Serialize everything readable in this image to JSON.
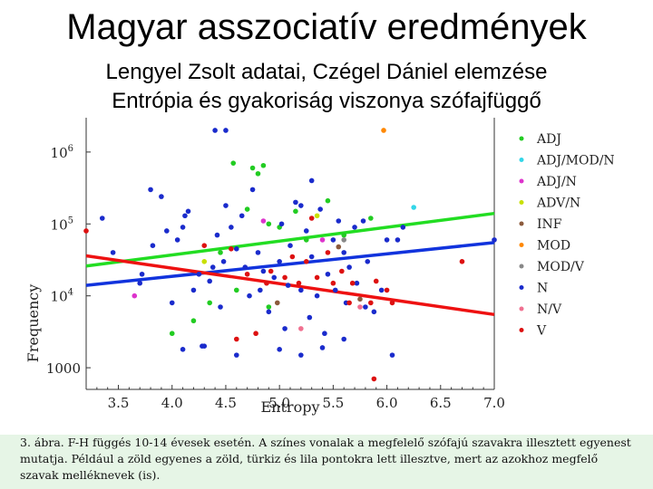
{
  "slide": {
    "title": "Magyar asszociatív eredmények",
    "subtitle1": "Lengyel Zsolt adatai, Czégel Dániel elemzése",
    "subtitle2": "Entrópia és gyakoriság viszonya  szófajfüggő"
  },
  "caption": "3. ábra. F-H függés 10-14 évesek esetén.  A színes vonalak a megfelelő szófajú szavakra illesztett egyenest mutatja. Például a zöld egyenes a zöld, türkiz és lila pontokra lett illesztve, mert az azokhoz megfelő szavak melléknevek (is).",
  "chart_data": {
    "type": "scatter",
    "xlabel": "Entropy",
    "ylabel": "Frequency",
    "xlim": [
      3.2,
      7.0
    ],
    "ylim": [
      500,
      3000000
    ],
    "yscale": "log",
    "x_ticks": [
      "3.5",
      "4.0",
      "4.5",
      "5.0",
      "5.5",
      "6.0",
      "6.5",
      "7.0"
    ],
    "x_tick_values": [
      3.5,
      4.0,
      4.5,
      5.0,
      5.5,
      6.0,
      6.5,
      7.0
    ],
    "y_ticks": [
      {
        "value": 1000000,
        "base": "10",
        "exp": "6"
      },
      {
        "value": 100000,
        "base": "10",
        "exp": "5"
      },
      {
        "value": 10000,
        "base": "10",
        "exp": "4"
      },
      {
        "value": 1000,
        "base": "1000",
        "exp": ""
      }
    ],
    "legend_position": "right",
    "series": [
      {
        "name": "ADJ",
        "color": "#22cc22",
        "points": [
          [
            4.57,
            700000
          ],
          [
            4.75,
            600000
          ],
          [
            4.85,
            650000
          ],
          [
            4.9,
            100000
          ],
          [
            5.15,
            150000
          ],
          [
            5.45,
            210000
          ],
          [
            4.7,
            160000
          ],
          [
            5.85,
            120000
          ],
          [
            5.25,
            60000
          ],
          [
            4.35,
            8000
          ],
          [
            4.6,
            12000
          ],
          [
            4.9,
            7000
          ],
          [
            4.2,
            4500
          ],
          [
            4.0,
            3000
          ],
          [
            4.45,
            40000
          ],
          [
            4.8,
            500000
          ],
          [
            5.0,
            90000
          ],
          [
            5.6,
            70000
          ]
        ]
      },
      {
        "name": "ADJ/MOD/N",
        "color": "#33d6e8",
        "points": [
          [
            6.25,
            170000
          ]
        ]
      },
      {
        "name": "ADJ/N",
        "color": "#dd33cc",
        "points": [
          [
            4.85,
            110000
          ],
          [
            3.65,
            10000
          ],
          [
            5.4,
            60000
          ]
        ]
      },
      {
        "name": "ADV/N",
        "color": "#c8e000",
        "points": [
          [
            4.3,
            30000
          ],
          [
            5.35,
            130000
          ]
        ]
      },
      {
        "name": "INF",
        "color": "#8b5a3c",
        "points": [
          [
            4.98,
            8000
          ],
          [
            5.55,
            48000
          ],
          [
            5.75,
            9000
          ]
        ]
      },
      {
        "name": "MOD",
        "color": "#ff8800",
        "points": [
          [
            5.97,
            2000000
          ]
        ]
      },
      {
        "name": "MOD/V",
        "color": "#888888",
        "points": [
          [
            5.6,
            60000
          ]
        ]
      },
      {
        "name": "N",
        "color": "#1a2bcc",
        "points": [
          [
            3.35,
            120000
          ],
          [
            3.45,
            40000
          ],
          [
            3.7,
            15000
          ],
          [
            3.72,
            20000
          ],
          [
            3.82,
            50000
          ],
          [
            3.95,
            80000
          ],
          [
            4.05,
            60000
          ],
          [
            4.12,
            130000
          ],
          [
            4.15,
            150000
          ],
          [
            4.2,
            12000
          ],
          [
            4.25,
            20000
          ],
          [
            4.28,
            2000
          ],
          [
            4.35,
            16000
          ],
          [
            4.38,
            25000
          ],
          [
            4.42,
            70000
          ],
          [
            4.48,
            30000
          ],
          [
            4.5,
            180000
          ],
          [
            4.55,
            90000
          ],
          [
            4.6,
            45000
          ],
          [
            4.65,
            130000
          ],
          [
            4.68,
            25000
          ],
          [
            4.72,
            10000
          ],
          [
            4.75,
            300000
          ],
          [
            4.8,
            40000
          ],
          [
            4.82,
            12000
          ],
          [
            4.85,
            22000
          ],
          [
            4.9,
            6000
          ],
          [
            4.95,
            18000
          ],
          [
            5.0,
            30000
          ],
          [
            5.02,
            100000
          ],
          [
            5.05,
            3500
          ],
          [
            5.08,
            14000
          ],
          [
            5.1,
            50000
          ],
          [
            5.15,
            200000
          ],
          [
            5.2,
            12000
          ],
          [
            5.25,
            80000
          ],
          [
            5.28,
            5000
          ],
          [
            5.3,
            35000
          ],
          [
            5.35,
            10000
          ],
          [
            5.38,
            160000
          ],
          [
            5.42,
            3000
          ],
          [
            5.45,
            20000
          ],
          [
            5.5,
            60000
          ],
          [
            5.52,
            12000
          ],
          [
            5.55,
            110000
          ],
          [
            5.6,
            40000
          ],
          [
            5.62,
            8000
          ],
          [
            5.65,
            25000
          ],
          [
            5.7,
            90000
          ],
          [
            5.72,
            15000
          ],
          [
            5.78,
            110000
          ],
          [
            5.82,
            30000
          ],
          [
            5.88,
            6000
          ],
          [
            5.95,
            12000
          ],
          [
            6.05,
            1500
          ],
          [
            6.1,
            60000
          ],
          [
            6.15,
            90000
          ],
          [
            4.45,
            7000
          ],
          [
            4.3,
            2000
          ],
          [
            4.1,
            1800
          ],
          [
            4.0,
            8000
          ],
          [
            4.6,
            1500
          ],
          [
            5.0,
            1800
          ],
          [
            5.2,
            1500
          ],
          [
            5.4,
            1900
          ],
          [
            5.6,
            2500
          ],
          [
            5.8,
            7000
          ],
          [
            3.8,
            300000
          ],
          [
            3.9,
            240000
          ],
          [
            4.1,
            90000
          ],
          [
            4.4,
            2000000
          ],
          [
            4.5,
            2000000
          ],
          [
            5.2,
            180000
          ],
          [
            5.3,
            400000
          ],
          [
            6.0,
            60000
          ],
          [
            7.0,
            60000
          ]
        ]
      },
      {
        "name": "N/V",
        "color": "#f07090",
        "points": [
          [
            5.2,
            3500
          ],
          [
            5.75,
            7000
          ]
        ]
      },
      {
        "name": "V",
        "color": "#dd1111",
        "points": [
          [
            3.2,
            80000
          ],
          [
            4.3,
            50000
          ],
          [
            4.55,
            45000
          ],
          [
            4.7,
            20000
          ],
          [
            4.78,
            3000
          ],
          [
            4.88,
            15000
          ],
          [
            4.92,
            22000
          ],
          [
            5.05,
            18000
          ],
          [
            5.12,
            35000
          ],
          [
            5.18,
            15000
          ],
          [
            5.25,
            30000
          ],
          [
            5.35,
            18000
          ],
          [
            5.45,
            40000
          ],
          [
            5.5,
            15000
          ],
          [
            5.58,
            22000
          ],
          [
            5.65,
            8000
          ],
          [
            5.68,
            15000
          ],
          [
            5.85,
            8000
          ],
          [
            5.9,
            16000
          ],
          [
            6.0,
            12000
          ],
          [
            6.05,
            8000
          ],
          [
            6.7,
            30000
          ],
          [
            5.88,
            700
          ],
          [
            4.6,
            2500
          ],
          [
            5.3,
            120000
          ]
        ]
      }
    ],
    "fit_lines": [
      {
        "name": "ADJ fit",
        "color": "#22dd22",
        "x": [
          3.2,
          7.0
        ],
        "y": [
          26000,
          140000
        ]
      },
      {
        "name": "N fit",
        "color": "#1133dd",
        "x": [
          3.2,
          7.0
        ],
        "y": [
          14000,
          55000
        ]
      },
      {
        "name": "V fit",
        "color": "#ee1111",
        "x": [
          3.2,
          7.0
        ],
        "y": [
          36000,
          5500
        ]
      }
    ]
  }
}
